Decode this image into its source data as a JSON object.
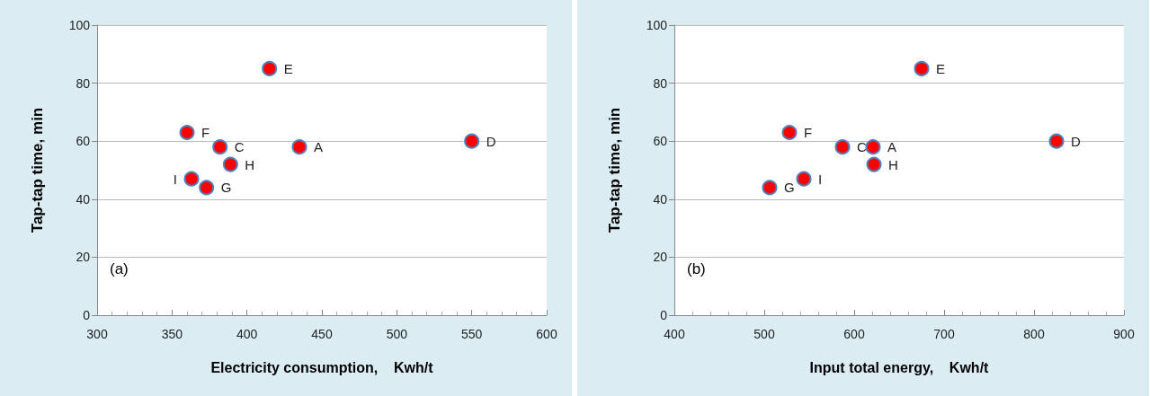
{
  "chart_data": [
    {
      "type": "scatter",
      "xlabel": "Electricity consumption,    Kwh/t",
      "ylabel": "Tap-tap time, min",
      "color": "#ff0000",
      "marker": "circle",
      "grid": "y",
      "x": [
        415,
        360,
        382,
        435,
        550,
        389,
        363,
        373
      ],
      "values": [
        85,
        63,
        58,
        58,
        60,
        52,
        47,
        44
      ],
      "xlim": [
        300,
        600
      ],
      "xticks": [
        300,
        350,
        400,
        450,
        500,
        550,
        600
      ],
      "ylim": [
        0,
        100
      ],
      "yticks": [
        0,
        20,
        40,
        60,
        80,
        100
      ],
      "annotations": [
        "(a)",
        {
          "text": "E",
          "x": 415,
          "y": 85
        },
        {
          "text": "F",
          "x": 360,
          "y": 63
        },
        {
          "text": "C",
          "x": 382,
          "y": 58
        },
        {
          "text": "A",
          "x": 435,
          "y": 58
        },
        {
          "text": "D",
          "x": 550,
          "y": 60
        },
        {
          "text": "H",
          "x": 389,
          "y": 52
        },
        {
          "text": "I",
          "x": 363,
          "y": 47
        },
        {
          "text": "G",
          "x": 373,
          "y": 44
        }
      ]
    },
    {
      "type": "scatter",
      "xlabel": "Input total energy,    Kwh/t",
      "ylabel": "Tap-tap time, min",
      "color": "#ff0000",
      "marker": "circle",
      "grid": "y",
      "x": [
        675,
        528,
        587,
        621,
        825,
        622,
        544,
        506
      ],
      "values": [
        85,
        63,
        58,
        58,
        60,
        52,
        47,
        44
      ],
      "xlim": [
        400,
        900
      ],
      "xticks": [
        400,
        500,
        600,
        700,
        800,
        900
      ],
      "ylim": [
        0,
        100
      ],
      "yticks": [
        0,
        20,
        40,
        60,
        80,
        100
      ],
      "annotations": [
        "(b)",
        {
          "text": "E",
          "x": 675,
          "y": 85
        },
        {
          "text": "F",
          "x": 528,
          "y": 63
        },
        {
          "text": "C",
          "x": 587,
          "y": 58
        },
        {
          "text": "A",
          "x": 621,
          "y": 58
        },
        {
          "text": "D",
          "x": 825,
          "y": 60
        },
        {
          "text": "H",
          "x": 622,
          "y": 52
        },
        {
          "text": "I",
          "x": 544,
          "y": 47
        },
        {
          "text": "G",
          "x": 506,
          "y": 44
        }
      ]
    }
  ]
}
